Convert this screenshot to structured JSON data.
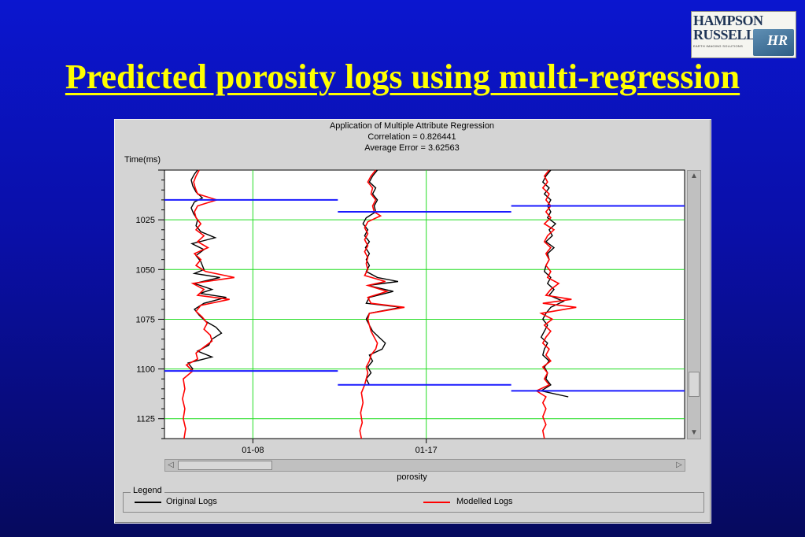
{
  "slide": {
    "title": "Predicted porosity logs using multi-regression"
  },
  "logo": {
    "line1": "HAMPSON",
    "line2": "RUSSELL",
    "tagline": "EARTH IMAGING SOLUTIONS",
    "mark": "HR"
  },
  "chart_data": {
    "type": "line",
    "title": "Application of Multiple Attribute Regression",
    "subtitle_lines": [
      "Correlation = 0.826441",
      "Average Error = 3.62563"
    ],
    "ylabel": "Time(ms)",
    "xlabel": "porosity",
    "y_reversed": true,
    "ylim": [
      1000,
      1135
    ],
    "y_ticks": [
      1025,
      1050,
      1075,
      1100,
      1125
    ],
    "x_ticks": [
      "01-08",
      "01-17"
    ],
    "grid": true,
    "legend": {
      "title": "Legend",
      "position": "bottom",
      "entries": [
        {
          "label": "Original Logs",
          "color": "#000000"
        },
        {
          "label": "Modelled Logs",
          "color": "#ff0000"
        }
      ]
    },
    "tracks": [
      {
        "well": "01-08",
        "analysis_window": [
          1015,
          1101
        ],
        "original": [
          [
            1000,
            0.22
          ],
          [
            1002,
            0.18
          ],
          [
            1005,
            0.14
          ],
          [
            1008,
            0.16
          ],
          [
            1011,
            0.2
          ],
          [
            1014,
            0.28
          ],
          [
            1016,
            0.18
          ],
          [
            1019,
            0.14
          ],
          [
            1022,
            0.17
          ],
          [
            1025,
            0.22
          ],
          [
            1028,
            0.2
          ],
          [
            1031,
            0.26
          ],
          [
            1034,
            0.44
          ],
          [
            1037,
            0.15
          ],
          [
            1040,
            0.3
          ],
          [
            1043,
            0.2
          ],
          [
            1046,
            0.26
          ],
          [
            1050,
            0.3
          ],
          [
            1052,
            0.18
          ],
          [
            1054,
            0.5
          ],
          [
            1057,
            0.18
          ],
          [
            1060,
            0.4
          ],
          [
            1062,
            0.25
          ],
          [
            1064,
            0.58
          ],
          [
            1067,
            0.3
          ],
          [
            1070,
            0.18
          ],
          [
            1073,
            0.24
          ],
          [
            1076,
            0.32
          ],
          [
            1079,
            0.45
          ],
          [
            1082,
            0.52
          ],
          [
            1085,
            0.4
          ],
          [
            1088,
            0.36
          ],
          [
            1091,
            0.22
          ],
          [
            1094,
            0.4
          ],
          [
            1097,
            0.1
          ],
          [
            1100,
            0.16
          ],
          [
            1101,
            0.12
          ]
        ],
        "modelled": [
          [
            1000,
            0.24
          ],
          [
            1003,
            0.2
          ],
          [
            1006,
            0.17
          ],
          [
            1009,
            0.19
          ],
          [
            1012,
            0.22
          ],
          [
            1015,
            0.46
          ],
          [
            1018,
            0.22
          ],
          [
            1021,
            0.18
          ],
          [
            1024,
            0.2
          ],
          [
            1027,
            0.26
          ],
          [
            1030,
            0.2
          ],
          [
            1033,
            0.3
          ],
          [
            1036,
            0.22
          ],
          [
            1039,
            0.35
          ],
          [
            1042,
            0.18
          ],
          [
            1045,
            0.26
          ],
          [
            1048,
            0.2
          ],
          [
            1051,
            0.32
          ],
          [
            1054,
            0.68
          ],
          [
            1057,
            0.16
          ],
          [
            1060,
            0.3
          ],
          [
            1063,
            0.22
          ],
          [
            1065,
            0.62
          ],
          [
            1068,
            0.26
          ],
          [
            1071,
            0.2
          ],
          [
            1074,
            0.28
          ],
          [
            1077,
            0.34
          ],
          [
            1080,
            0.3
          ],
          [
            1083,
            0.38
          ],
          [
            1086,
            0.4
          ],
          [
            1089,
            0.3
          ],
          [
            1092,
            0.2
          ],
          [
            1095,
            0.22
          ],
          [
            1098,
            0.08
          ],
          [
            1101,
            0.16
          ],
          [
            1105,
            0.04
          ],
          [
            1110,
            0.06
          ],
          [
            1115,
            0.03
          ],
          [
            1120,
            0.06
          ],
          [
            1125,
            0.04
          ],
          [
            1130,
            0.07
          ],
          [
            1135,
            0.05
          ]
        ]
      },
      {
        "well": "01-17",
        "analysis_window": [
          1021,
          1108
        ],
        "original": [
          [
            1000,
            0.3
          ],
          [
            1003,
            0.24
          ],
          [
            1006,
            0.2
          ],
          [
            1009,
            0.28
          ],
          [
            1012,
            0.24
          ],
          [
            1015,
            0.3
          ],
          [
            1018,
            0.26
          ],
          [
            1021,
            0.28
          ],
          [
            1024,
            0.16
          ],
          [
            1027,
            0.12
          ],
          [
            1030,
            0.18
          ],
          [
            1033,
            0.14
          ],
          [
            1036,
            0.2
          ],
          [
            1039,
            0.15
          ],
          [
            1042,
            0.2
          ],
          [
            1045,
            0.16
          ],
          [
            1048,
            0.2
          ],
          [
            1051,
            0.16
          ],
          [
            1054,
            0.3
          ],
          [
            1056,
            0.56
          ],
          [
            1058,
            0.18
          ],
          [
            1061,
            0.5
          ],
          [
            1064,
            0.2
          ],
          [
            1067,
            0.16
          ],
          [
            1069,
            0.6
          ],
          [
            1072,
            0.2
          ],
          [
            1075,
            0.16
          ],
          [
            1078,
            0.2
          ],
          [
            1081,
            0.24
          ],
          [
            1084,
            0.32
          ],
          [
            1087,
            0.4
          ],
          [
            1090,
            0.36
          ],
          [
            1093,
            0.2
          ],
          [
            1096,
            0.24
          ],
          [
            1099,
            0.18
          ],
          [
            1102,
            0.22
          ],
          [
            1105,
            0.16
          ],
          [
            1108,
            0.2
          ]
        ],
        "modelled": [
          [
            1000,
            0.28
          ],
          [
            1003,
            0.22
          ],
          [
            1006,
            0.18
          ],
          [
            1009,
            0.24
          ],
          [
            1012,
            0.22
          ],
          [
            1015,
            0.28
          ],
          [
            1018,
            0.24
          ],
          [
            1021,
            0.26
          ],
          [
            1023,
            0.34
          ],
          [
            1026,
            0.18
          ],
          [
            1029,
            0.14
          ],
          [
            1032,
            0.18
          ],
          [
            1035,
            0.14
          ],
          [
            1038,
            0.18
          ],
          [
            1041,
            0.14
          ],
          [
            1044,
            0.18
          ],
          [
            1047,
            0.16
          ],
          [
            1050,
            0.18
          ],
          [
            1053,
            0.14
          ],
          [
            1056,
            0.4
          ],
          [
            1058,
            0.18
          ],
          [
            1061,
            0.42
          ],
          [
            1064,
            0.18
          ],
          [
            1067,
            0.22
          ],
          [
            1069,
            0.64
          ],
          [
            1072,
            0.2
          ],
          [
            1075,
            0.18
          ],
          [
            1078,
            0.2
          ],
          [
            1081,
            0.22
          ],
          [
            1084,
            0.26
          ],
          [
            1087,
            0.3
          ],
          [
            1090,
            0.28
          ],
          [
            1093,
            0.22
          ],
          [
            1096,
            0.2
          ],
          [
            1099,
            0.16
          ],
          [
            1102,
            0.18
          ],
          [
            1105,
            0.16
          ],
          [
            1108,
            0.14
          ],
          [
            1112,
            0.1
          ],
          [
            1117,
            0.12
          ],
          [
            1122,
            0.09
          ],
          [
            1127,
            0.11
          ],
          [
            1131,
            0.08
          ],
          [
            1135,
            0.1
          ]
        ]
      },
      {
        "well": "",
        "analysis_window": [
          1018,
          1111
        ],
        "original": [
          [
            1000,
            0.3
          ],
          [
            1003,
            0.24
          ],
          [
            1006,
            0.2
          ],
          [
            1009,
            0.28
          ],
          [
            1012,
            0.22
          ],
          [
            1015,
            0.3
          ],
          [
            1018,
            0.26
          ],
          [
            1021,
            0.3
          ],
          [
            1024,
            0.26
          ],
          [
            1027,
            0.36
          ],
          [
            1030,
            0.28
          ],
          [
            1033,
            0.32
          ],
          [
            1036,
            0.24
          ],
          [
            1039,
            0.34
          ],
          [
            1042,
            0.26
          ],
          [
            1045,
            0.28
          ],
          [
            1048,
            0.24
          ],
          [
            1051,
            0.22
          ],
          [
            1054,
            0.3
          ],
          [
            1057,
            0.26
          ],
          [
            1060,
            0.34
          ],
          [
            1063,
            0.28
          ],
          [
            1066,
            0.46
          ],
          [
            1069,
            0.3
          ],
          [
            1072,
            0.24
          ],
          [
            1075,
            0.2
          ],
          [
            1078,
            0.26
          ],
          [
            1081,
            0.22
          ],
          [
            1084,
            0.18
          ],
          [
            1087,
            0.26
          ],
          [
            1090,
            0.22
          ],
          [
            1093,
            0.2
          ],
          [
            1096,
            0.28
          ],
          [
            1099,
            0.22
          ],
          [
            1102,
            0.26
          ],
          [
            1105,
            0.24
          ],
          [
            1108,
            0.3
          ],
          [
            1111,
            0.18
          ],
          [
            1114,
            0.52
          ]
        ],
        "modelled": [
          [
            1000,
            0.28
          ],
          [
            1003,
            0.22
          ],
          [
            1006,
            0.26
          ],
          [
            1009,
            0.2
          ],
          [
            1012,
            0.28
          ],
          [
            1015,
            0.24
          ],
          [
            1018,
            0.3
          ],
          [
            1021,
            0.24
          ],
          [
            1024,
            0.3
          ],
          [
            1027,
            0.22
          ],
          [
            1030,
            0.34
          ],
          [
            1033,
            0.26
          ],
          [
            1036,
            0.22
          ],
          [
            1039,
            0.3
          ],
          [
            1042,
            0.24
          ],
          [
            1045,
            0.28
          ],
          [
            1048,
            0.24
          ],
          [
            1051,
            0.3
          ],
          [
            1054,
            0.26
          ],
          [
            1057,
            0.4
          ],
          [
            1060,
            0.3
          ],
          [
            1063,
            0.24
          ],
          [
            1065,
            0.56
          ],
          [
            1067,
            0.2
          ],
          [
            1069,
            0.62
          ],
          [
            1072,
            0.18
          ],
          [
            1075,
            0.32
          ],
          [
            1078,
            0.22
          ],
          [
            1081,
            0.3
          ],
          [
            1084,
            0.24
          ],
          [
            1087,
            0.2
          ],
          [
            1090,
            0.28
          ],
          [
            1093,
            0.24
          ],
          [
            1096,
            0.3
          ],
          [
            1099,
            0.2
          ],
          [
            1102,
            0.26
          ],
          [
            1105,
            0.22
          ],
          [
            1108,
            0.28
          ],
          [
            1111,
            0.12
          ],
          [
            1114,
            0.24
          ],
          [
            1117,
            0.2
          ],
          [
            1120,
            0.24
          ],
          [
            1124,
            0.2
          ],
          [
            1128,
            0.24
          ],
          [
            1131,
            0.2
          ],
          [
            1135,
            0.22
          ]
        ]
      }
    ]
  }
}
